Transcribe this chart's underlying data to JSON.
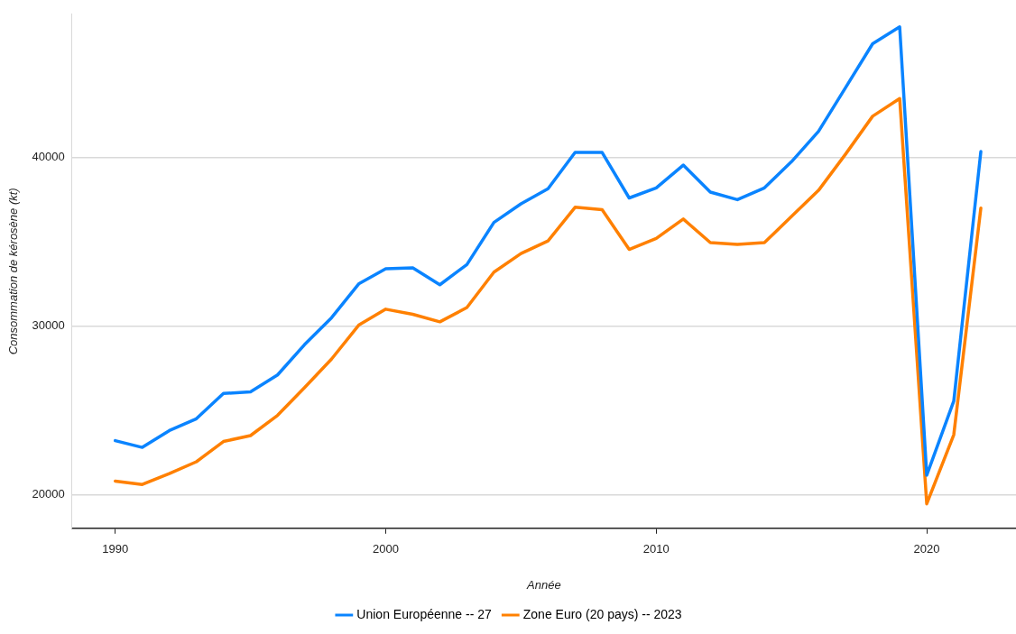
{
  "chart_data": {
    "type": "line",
    "xlabel": "Année",
    "ylabel": "Consommation de kérosène (kt)",
    "x": [
      1990,
      1991,
      1992,
      1993,
      1994,
      1995,
      1996,
      1997,
      1998,
      1999,
      2000,
      2001,
      2002,
      2003,
      2004,
      2005,
      2006,
      2007,
      2008,
      2009,
      2010,
      2011,
      2012,
      2013,
      2014,
      2015,
      2016,
      2017,
      2018,
      2019,
      2020,
      2021,
      2022
    ],
    "series": [
      {
        "name": "Union Européenne -- 27",
        "color": "#0a84ff",
        "values": [
          23200,
          22800,
          23800,
          24500,
          26000,
          26100,
          27100,
          28900,
          30500,
          32500,
          33400,
          33450,
          32450,
          33650,
          36150,
          37250,
          38150,
          40300,
          40300,
          37600,
          38200,
          39550,
          37950,
          37500,
          38200,
          39750,
          41550,
          44150,
          46750,
          47750,
          21150,
          25550,
          40350
        ]
      },
      {
        "name": "Zone Euro (20 pays) -- 2023",
        "color": "#ff8000",
        "values": [
          20800,
          20600,
          21250,
          21950,
          23150,
          23500,
          24700,
          26350,
          28050,
          30050,
          31000,
          30700,
          30250,
          31100,
          33200,
          34300,
          35050,
          37050,
          36900,
          34550,
          35200,
          36350,
          34950,
          34850,
          34950,
          36500,
          38050,
          40200,
          42450,
          43500,
          19450,
          23550,
          37000
        ]
      }
    ],
    "xlim": [
      1988.4,
      2023.3
    ],
    "xticks": [
      1990,
      2000,
      2010,
      2020
    ],
    "ylim": [
      18000,
      48500
    ],
    "yticks": [
      20000,
      30000,
      40000
    ],
    "grid": "y",
    "legend": "bottom",
    "line_style": "solid",
    "marker": "none"
  }
}
